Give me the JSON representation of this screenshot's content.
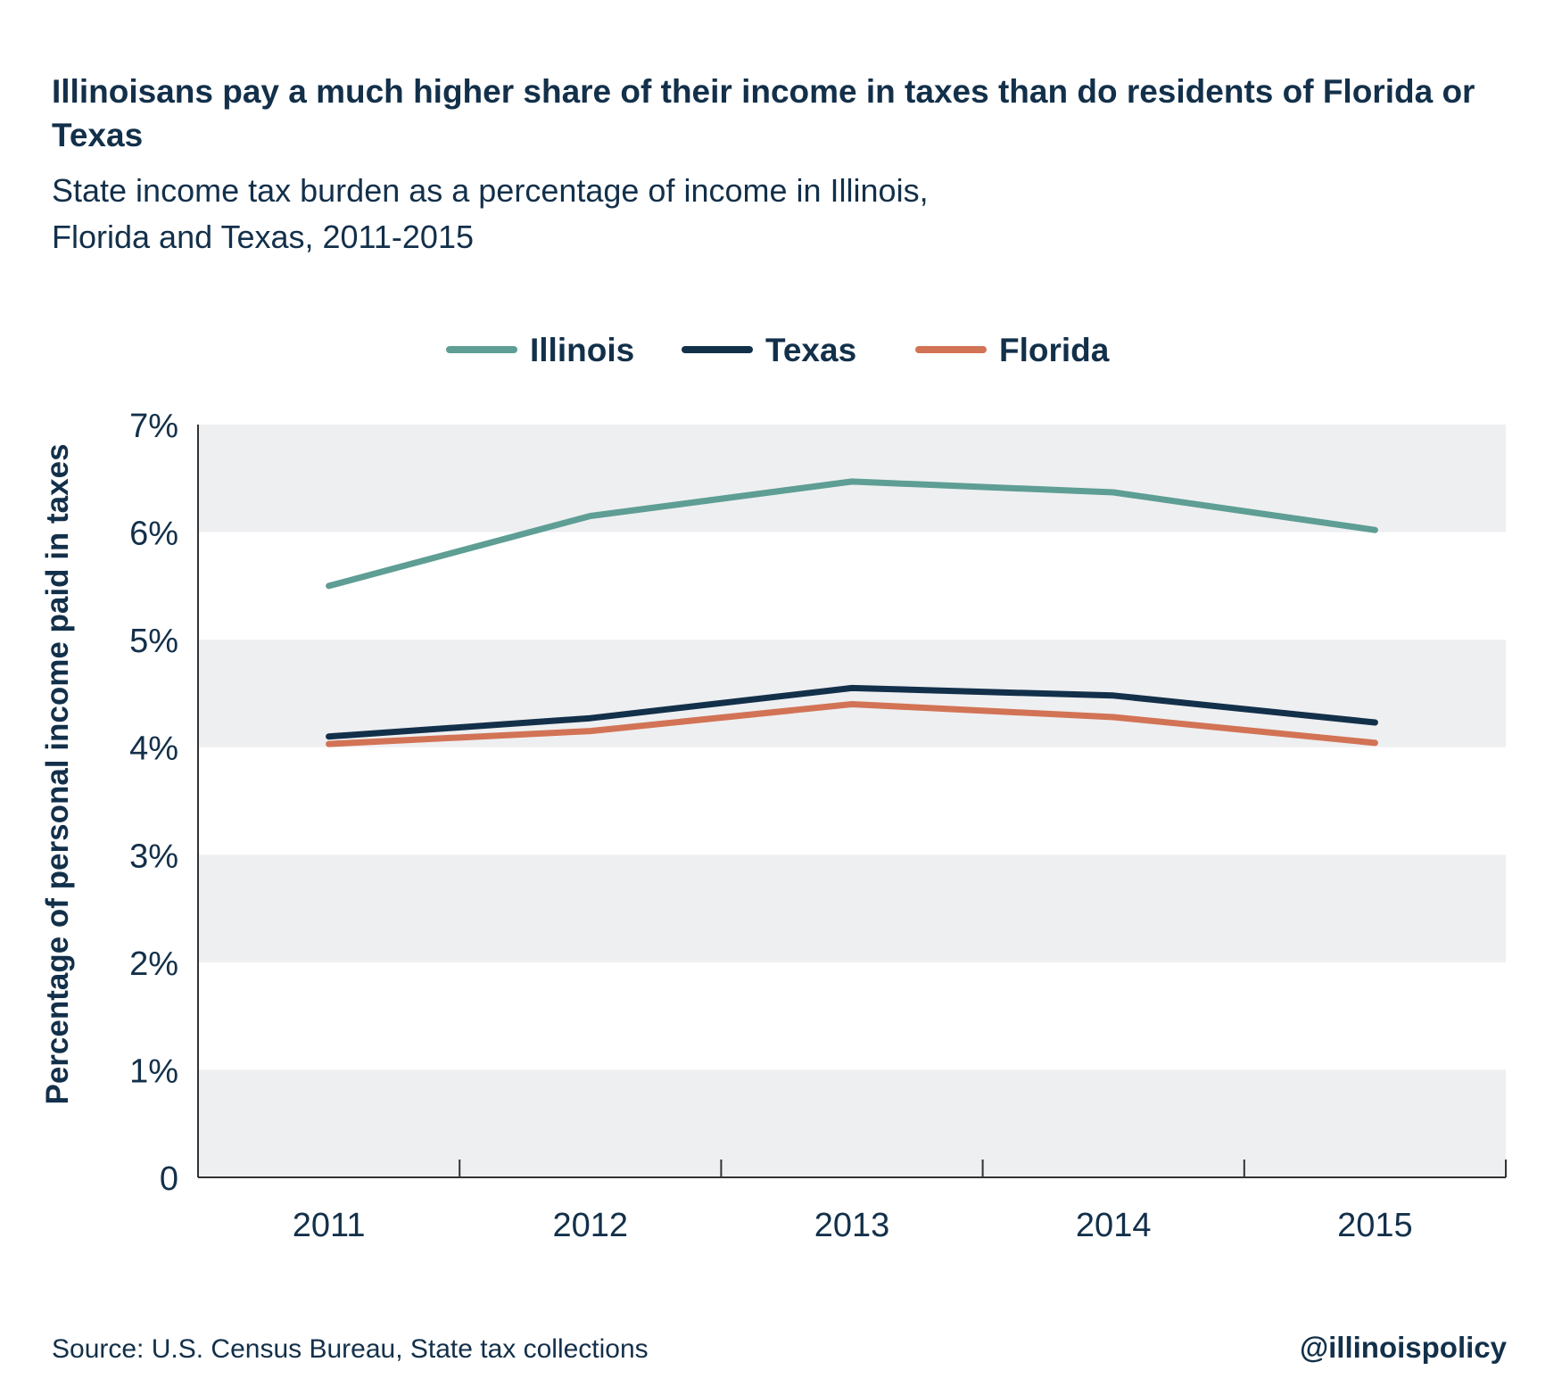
{
  "title": "Illinoisans pay a much higher share of their income in taxes than do residents of Florida or Texas",
  "subtitle_line1": "State income tax burden as a percentage of income in Illinois,",
  "subtitle_line2": "Florida and Texas, 2011-2015",
  "source": "Source: U.S. Census Bureau, State tax collections",
  "handle": "@illinoispolicy",
  "chart_data": {
    "type": "line",
    "x": [
      "2011",
      "2012",
      "2013",
      "2014",
      "2015"
    ],
    "ylabel": "Percentage of personal income paid in taxes",
    "ylim": [
      0,
      7
    ],
    "yticks": [
      0,
      1,
      2,
      3,
      4,
      5,
      6,
      7
    ],
    "ytick_labels": [
      "0",
      "1%",
      "2%",
      "3%",
      "4%",
      "5%",
      "6%",
      "7%"
    ],
    "legend_position": "top-center",
    "grid": "alternating horizontal bands",
    "colors": {
      "band": "#eeeff1",
      "axis": "#333333"
    },
    "series": [
      {
        "name": "Illinois",
        "color": "#5e9e94",
        "values": [
          5.5,
          6.15,
          6.47,
          6.37,
          6.02
        ]
      },
      {
        "name": "Texas",
        "color": "#13304a",
        "values": [
          4.1,
          4.27,
          4.55,
          4.48,
          4.23
        ]
      },
      {
        "name": "Florida",
        "color": "#d27355",
        "values": [
          4.03,
          4.15,
          4.4,
          4.28,
          4.04
        ]
      }
    ]
  }
}
